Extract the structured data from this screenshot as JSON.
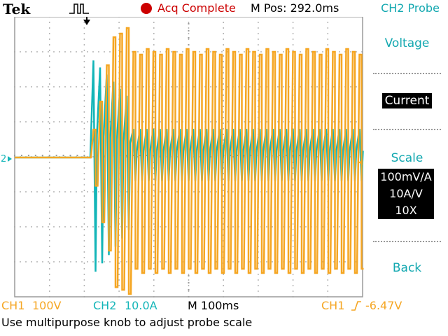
{
  "header": {
    "brand": "Tek",
    "acq_status": "Acq Complete",
    "m_pos": "M Pos: 292.0ms",
    "menu_title": "CH2 Probe"
  },
  "side_menu": {
    "voltage": "Voltage",
    "current": "Current",
    "scale_label": "Scale",
    "scale_options": [
      "100mV/A",
      "10A/V",
      "10X"
    ],
    "back": "Back"
  },
  "status": {
    "ch1": "CH1",
    "ch1_scale": "100V",
    "ch2": "CH2",
    "ch2_scale": "10.0A",
    "timebase": "M 100ms",
    "trigger_source": "CH1",
    "trigger_level": "-6.47V"
  },
  "help": "Use multipurpose knob to adjust probe scale",
  "markers": {
    "ch2_marker": "2"
  },
  "colors": {
    "ch1": "#f5a623",
    "ch2": "#13b5b8",
    "stop": "#cc0000",
    "accent": "#13a8b0"
  },
  "icons": {
    "trigger_type": "pulse-edge-icon",
    "trigger_position": "trigger-arrow-icon",
    "run_state": "stop-dot-icon",
    "trigger_slope": "rising-edge-icon"
  }
}
